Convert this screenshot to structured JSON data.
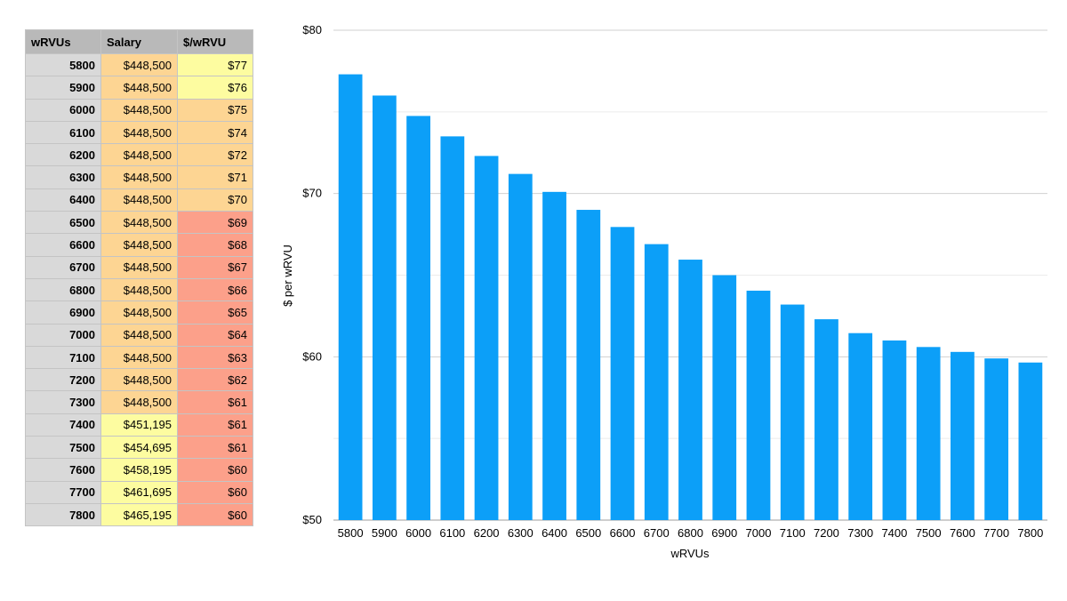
{
  "table": {
    "headers": [
      "wRVUs",
      "Salary",
      "$/wRVU"
    ],
    "rows": [
      {
        "wrvus": "5800",
        "salary": "$448,500",
        "rate": "$77",
        "salary_color": "#fdd593",
        "rate_color": "#fdfca0"
      },
      {
        "wrvus": "5900",
        "salary": "$448,500",
        "rate": "$76",
        "salary_color": "#fdd593",
        "rate_color": "#fdfca0"
      },
      {
        "wrvus": "6000",
        "salary": "$448,500",
        "rate": "$75",
        "salary_color": "#fdd593",
        "rate_color": "#fdd593"
      },
      {
        "wrvus": "6100",
        "salary": "$448,500",
        "rate": "$74",
        "salary_color": "#fdd593",
        "rate_color": "#fdd593"
      },
      {
        "wrvus": "6200",
        "salary": "$448,500",
        "rate": "$72",
        "salary_color": "#fdd593",
        "rate_color": "#fdd593"
      },
      {
        "wrvus": "6300",
        "salary": "$448,500",
        "rate": "$71",
        "salary_color": "#fdd593",
        "rate_color": "#fdd593"
      },
      {
        "wrvus": "6400",
        "salary": "$448,500",
        "rate": "$70",
        "salary_color": "#fdd593",
        "rate_color": "#fdd593"
      },
      {
        "wrvus": "6500",
        "salary": "$448,500",
        "rate": "$69",
        "salary_color": "#fdd593",
        "rate_color": "#fca08a"
      },
      {
        "wrvus": "6600",
        "salary": "$448,500",
        "rate": "$68",
        "salary_color": "#fdd593",
        "rate_color": "#fca08a"
      },
      {
        "wrvus": "6700",
        "salary": "$448,500",
        "rate": "$67",
        "salary_color": "#fdd593",
        "rate_color": "#fca08a"
      },
      {
        "wrvus": "6800",
        "salary": "$448,500",
        "rate": "$66",
        "salary_color": "#fdd593",
        "rate_color": "#fca08a"
      },
      {
        "wrvus": "6900",
        "salary": "$448,500",
        "rate": "$65",
        "salary_color": "#fdd593",
        "rate_color": "#fca08a"
      },
      {
        "wrvus": "7000",
        "salary": "$448,500",
        "rate": "$64",
        "salary_color": "#fdd593",
        "rate_color": "#fca08a"
      },
      {
        "wrvus": "7100",
        "salary": "$448,500",
        "rate": "$63",
        "salary_color": "#fdd593",
        "rate_color": "#fca08a"
      },
      {
        "wrvus": "7200",
        "salary": "$448,500",
        "rate": "$62",
        "salary_color": "#fdd593",
        "rate_color": "#fca08a"
      },
      {
        "wrvus": "7300",
        "salary": "$448,500",
        "rate": "$61",
        "salary_color": "#fdd593",
        "rate_color": "#fca08a"
      },
      {
        "wrvus": "7400",
        "salary": "$451,195",
        "rate": "$61",
        "salary_color": "#fdfca0",
        "rate_color": "#fca08a"
      },
      {
        "wrvus": "7500",
        "salary": "$454,695",
        "rate": "$61",
        "salary_color": "#fdfca0",
        "rate_color": "#fca08a"
      },
      {
        "wrvus": "7600",
        "salary": "$458,195",
        "rate": "$60",
        "salary_color": "#fdfca0",
        "rate_color": "#fca08a"
      },
      {
        "wrvus": "7700",
        "salary": "$461,695",
        "rate": "$60",
        "salary_color": "#fdfca0",
        "rate_color": "#fca08a"
      },
      {
        "wrvus": "7800",
        "salary": "$465,195",
        "rate": "$60",
        "salary_color": "#fdfca0",
        "rate_color": "#fca08a"
      }
    ]
  },
  "chart_data": {
    "type": "bar",
    "categories": [
      "5800",
      "5900",
      "6000",
      "6100",
      "6200",
      "6300",
      "6400",
      "6500",
      "6600",
      "6700",
      "6800",
      "6900",
      "7000",
      "7100",
      "7200",
      "7300",
      "7400",
      "7500",
      "7600",
      "7700",
      "7800"
    ],
    "values": [
      77.3,
      76.0,
      74.75,
      73.5,
      72.3,
      71.2,
      70.1,
      69.0,
      67.95,
      66.9,
      65.95,
      65.0,
      64.05,
      63.2,
      62.3,
      61.45,
      61.0,
      60.6,
      60.3,
      59.9,
      59.65
    ],
    "bar_color": "#0c9ff8",
    "xlabel": "wRVUs",
    "ylabel": "$ per wRVU",
    "ylim": [
      50,
      80
    ],
    "yticks": [
      50,
      60,
      70,
      80
    ],
    "ytick_labels": [
      "$50",
      "$60",
      "$70",
      "$80"
    ],
    "grid": true,
    "minor_grid": true
  }
}
